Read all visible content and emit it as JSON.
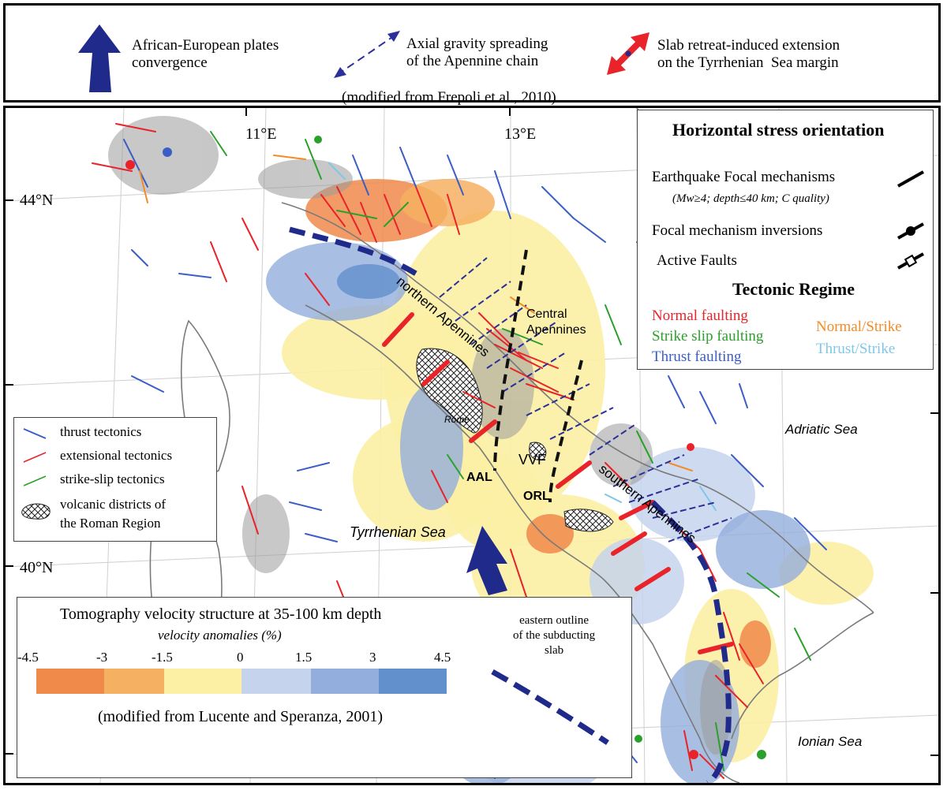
{
  "top_legend": {
    "convergence": "African-European plates\nconvergence",
    "gravity": "Axial gravity spreading\nof the Apennine chain",
    "slab": "Slab retreat-induced extension\non the Tyrrhenian  Sea margin",
    "source": "(modified from Frepoli et al., 2010)",
    "colors": {
      "convergence": "#1f2a8a",
      "gravity": "#2a2f9a",
      "slab": "#e8232a"
    }
  },
  "stress_legend": {
    "title": "Horizontal stress orientation",
    "focal": "Earthquake Focal mechanisms",
    "focal_note": "(Mw≥4; depth≤40 km; C quality)",
    "inversions": "Focal mechanism inversions",
    "faults": "Active Faults",
    "regime_title": "Tectonic Regime",
    "normal": "Normal faulting",
    "strike": "Strike slip faulting",
    "thrust": "Thrust faulting",
    "normal_strike": "Normal/Strike",
    "thrust_strike": "Thrust/Strike",
    "colors": {
      "normal": "#e8232a",
      "strike": "#2ca02c",
      "thrust": "#3b5ec6",
      "normal_strike": "#f28c28",
      "thrust_strike": "#7fc7e6"
    }
  },
  "tectonics_legend": {
    "thrust": "thrust tectonics",
    "extensional": "extensional  tectonics",
    "strike": "strike-slip  tectonics",
    "volcanic": "volcanic districts of\nthe Roman Region"
  },
  "map_labels": {
    "lon_11": "11°E",
    "lon_13": "13°E",
    "lat_44": "44°N",
    "lat_40": "40°N",
    "northern": "northern Apennines",
    "central": "Central\nApennines",
    "southern": "southern Apennines",
    "rome": "Rome",
    "aal": "AAL",
    "vvf": "VVF",
    "orl": "ORL",
    "tyrrhenian": "Tyrrhenian Sea",
    "adriatic": "Adriatic Sea",
    "ionian": "Ionian Sea"
  },
  "tomography_legend": {
    "title": "Tomography velocity structure at 35-100 km depth",
    "subtitle": "velocity anomalies (%)",
    "ticks": [
      "-4.5",
      "-3",
      "-1.5",
      "0",
      "1.5",
      "3",
      "4.5"
    ],
    "colors": [
      "#f08a4b",
      "#f6b061",
      "#fbf0a4",
      "#c6d3ec",
      "#93aedc",
      "#6290cc"
    ],
    "source": "(modified from Lucente and Speranza, 2001)",
    "slab_label": "eastern outline\nof the subducting\nslab"
  }
}
